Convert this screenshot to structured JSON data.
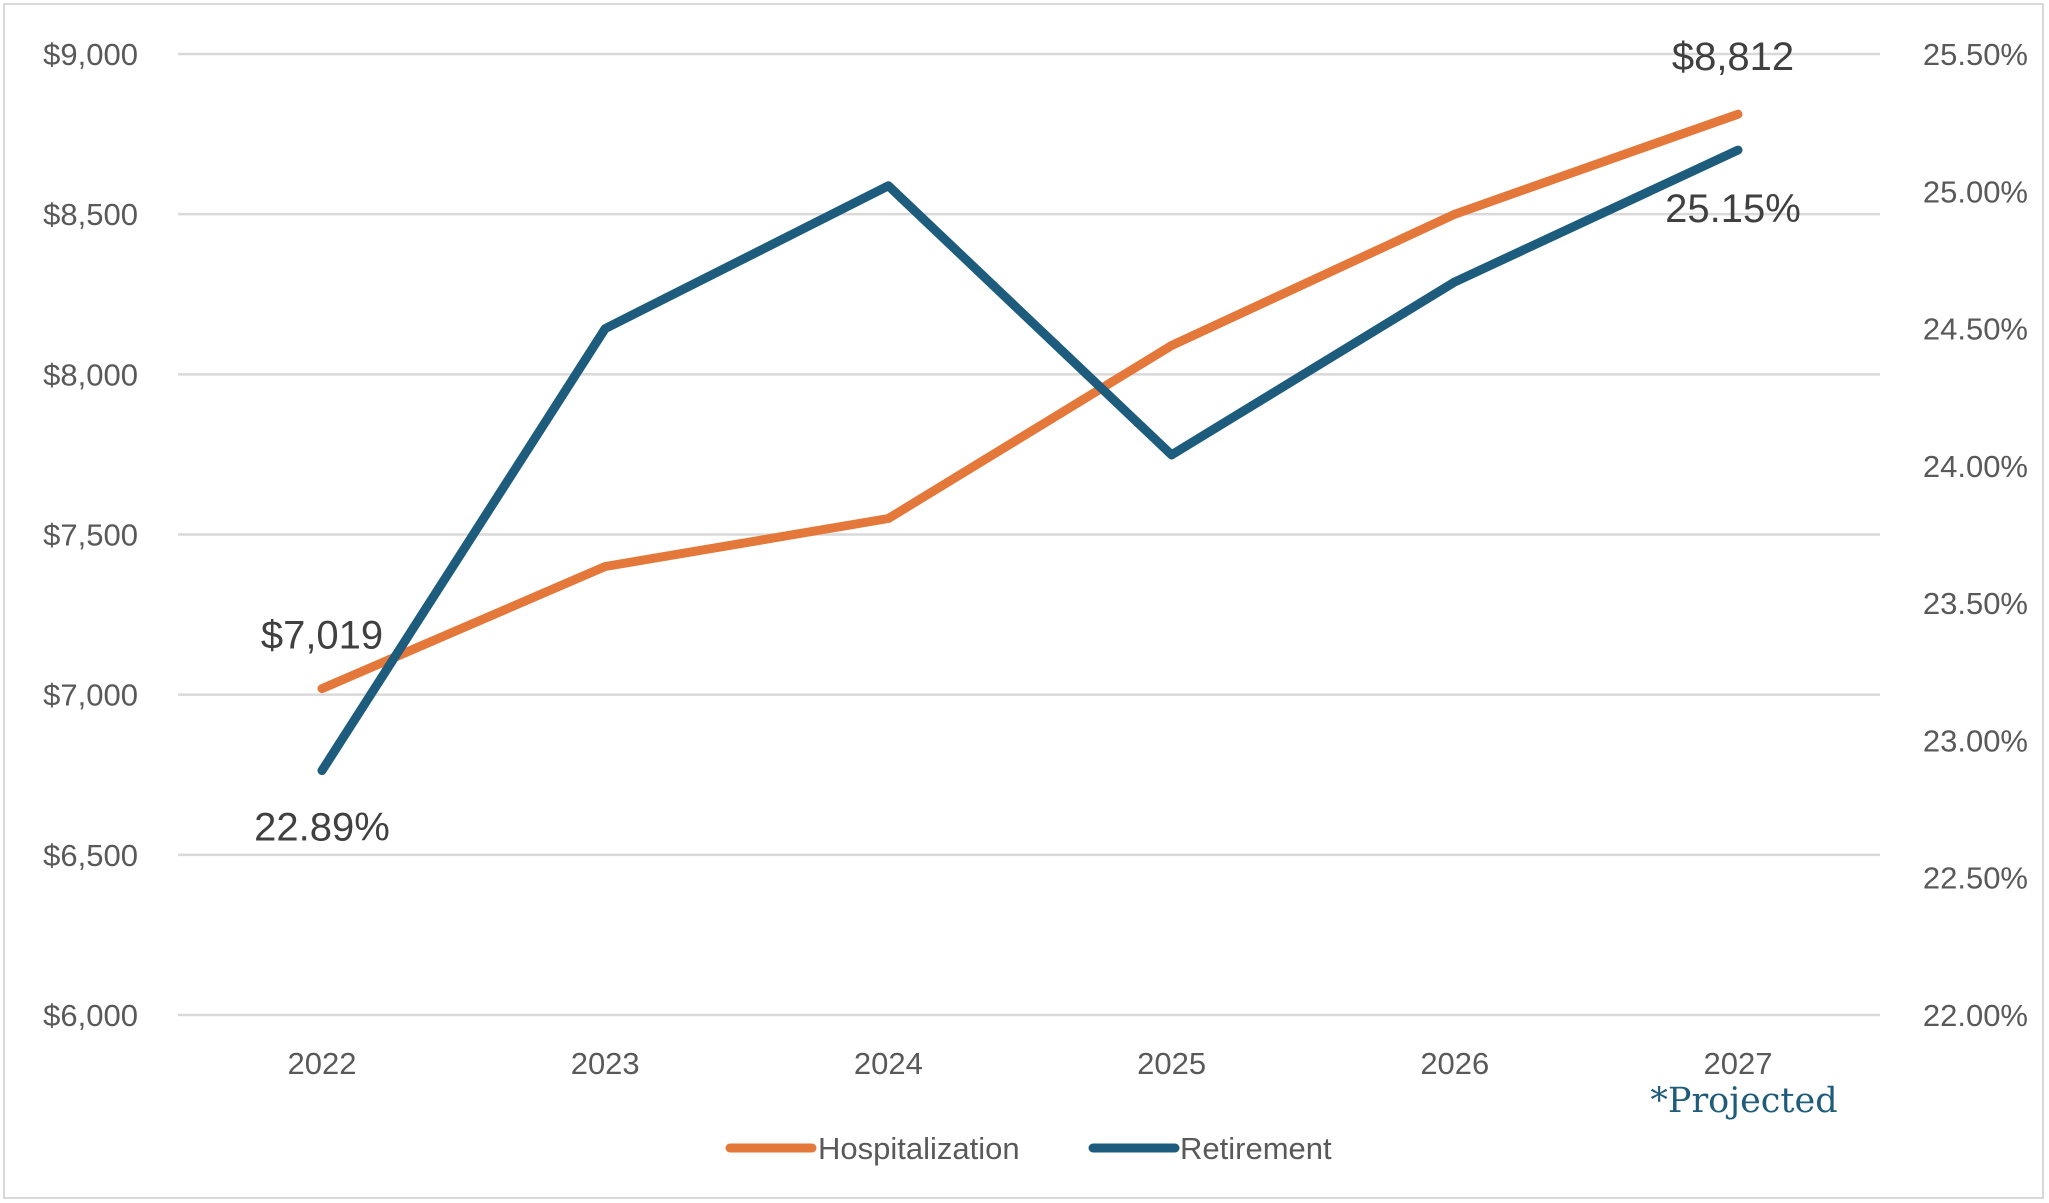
{
  "chart_data": {
    "type": "line",
    "categories": [
      "2022",
      "2023",
      "2024",
      "2025",
      "2026",
      "2027"
    ],
    "series": [
      {
        "name": "Hospitalization",
        "axis": "left",
        "color": "#e4783a",
        "values": [
          7019,
          7400,
          7550,
          8090,
          8500,
          8812
        ]
      },
      {
        "name": "Retirement",
        "axis": "right",
        "color": "#1d5c7c",
        "values": [
          22.89,
          24.5,
          25.02,
          24.04,
          24.67,
          25.15
        ]
      }
    ],
    "left_axis": {
      "ylim": [
        6000,
        9000
      ],
      "ticks": [
        6000,
        6500,
        7000,
        7500,
        8000,
        8500,
        9000
      ],
      "tick_labels": [
        "$6,000",
        "$6,500",
        "$7,000",
        "$7,500",
        "$8,000",
        "$8,500",
        "$9,000"
      ]
    },
    "right_axis": {
      "ylim": [
        22.0,
        25.5
      ],
      "ticks": [
        22.0,
        22.5,
        23.0,
        23.5,
        24.0,
        24.5,
        25.0,
        25.5
      ],
      "tick_labels": [
        "22.00%",
        "22.50%",
        "23.00%",
        "23.50%",
        "24.00%",
        "24.50%",
        "25.00%",
        "25.50%"
      ]
    },
    "data_labels": [
      {
        "series": 0,
        "index": 0,
        "text": "$7,019"
      },
      {
        "series": 0,
        "index": 5,
        "text": "$8,812"
      },
      {
        "series": 1,
        "index": 0,
        "text": "22.89%"
      },
      {
        "series": 1,
        "index": 5,
        "text": "25.15%"
      }
    ],
    "annotation": "*Projected",
    "gridlines": "horizontal",
    "legend_position": "bottom"
  }
}
